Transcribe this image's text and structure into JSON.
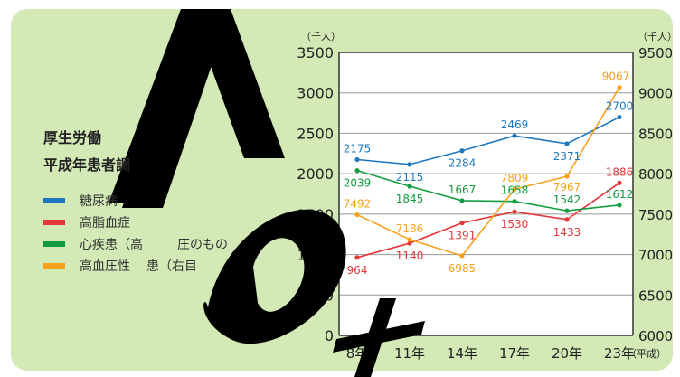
{
  "colors": {
    "background": "#d3e9b6",
    "plot_bg": "#ffffff",
    "grid": "#999999",
    "watermark": "#000000"
  },
  "watermark_text": "No",
  "left_title": {
    "line1": "厚生労働",
    "line2": "平成",
    "line2_tail": "年患者調"
  },
  "legend": [
    {
      "label": "糖尿病",
      "color": "#1e78c0"
    },
    {
      "label": "高脂血症",
      "color": "#e5373a"
    },
    {
      "label": "心疾患（高",
      "color": "#119d3e",
      "tail": "圧のもの"
    },
    {
      "label": "高血圧性",
      "color": "#f6a01c",
      "tail": "患（右目"
    }
  ],
  "chart_data": {
    "type": "line",
    "categories": [
      "8年",
      "11年",
      "14年",
      "17年",
      "20年",
      "23年"
    ],
    "x_suffix": "（平成）",
    "y_left": {
      "unit": "（千人）",
      "ticks": [
        0,
        500,
        1000,
        1500,
        2000,
        2500,
        3000,
        3500
      ],
      "ylim": [
        0,
        3500
      ]
    },
    "y_right": {
      "unit": "（千人）",
      "ticks": [
        6000,
        6500,
        7000,
        7500,
        8000,
        8500,
        9000,
        9500
      ],
      "ylim": [
        6000,
        9500
      ]
    },
    "grid": true,
    "series": [
      {
        "name": "糖尿病",
        "axis": "left",
        "color": "#1e78c0",
        "values": [
          2175,
          2115,
          2284,
          2469,
          2371,
          2700
        ]
      },
      {
        "name": "高脂血症",
        "axis": "left",
        "color": "#e5373a",
        "values": [
          964,
          1140,
          1391,
          1530,
          1433,
          1886
        ]
      },
      {
        "name": "心疾患（高血圧性のものを除く）",
        "axis": "left",
        "color": "#119d3e",
        "values": [
          2039,
          1845,
          1667,
          1658,
          1542,
          1612
        ]
      },
      {
        "name": "高血圧性疾患（右目盛）",
        "axis": "right",
        "color": "#f6a01c",
        "values": [
          7492,
          7186,
          6985,
          7809,
          7967,
          9067
        ]
      }
    ]
  }
}
